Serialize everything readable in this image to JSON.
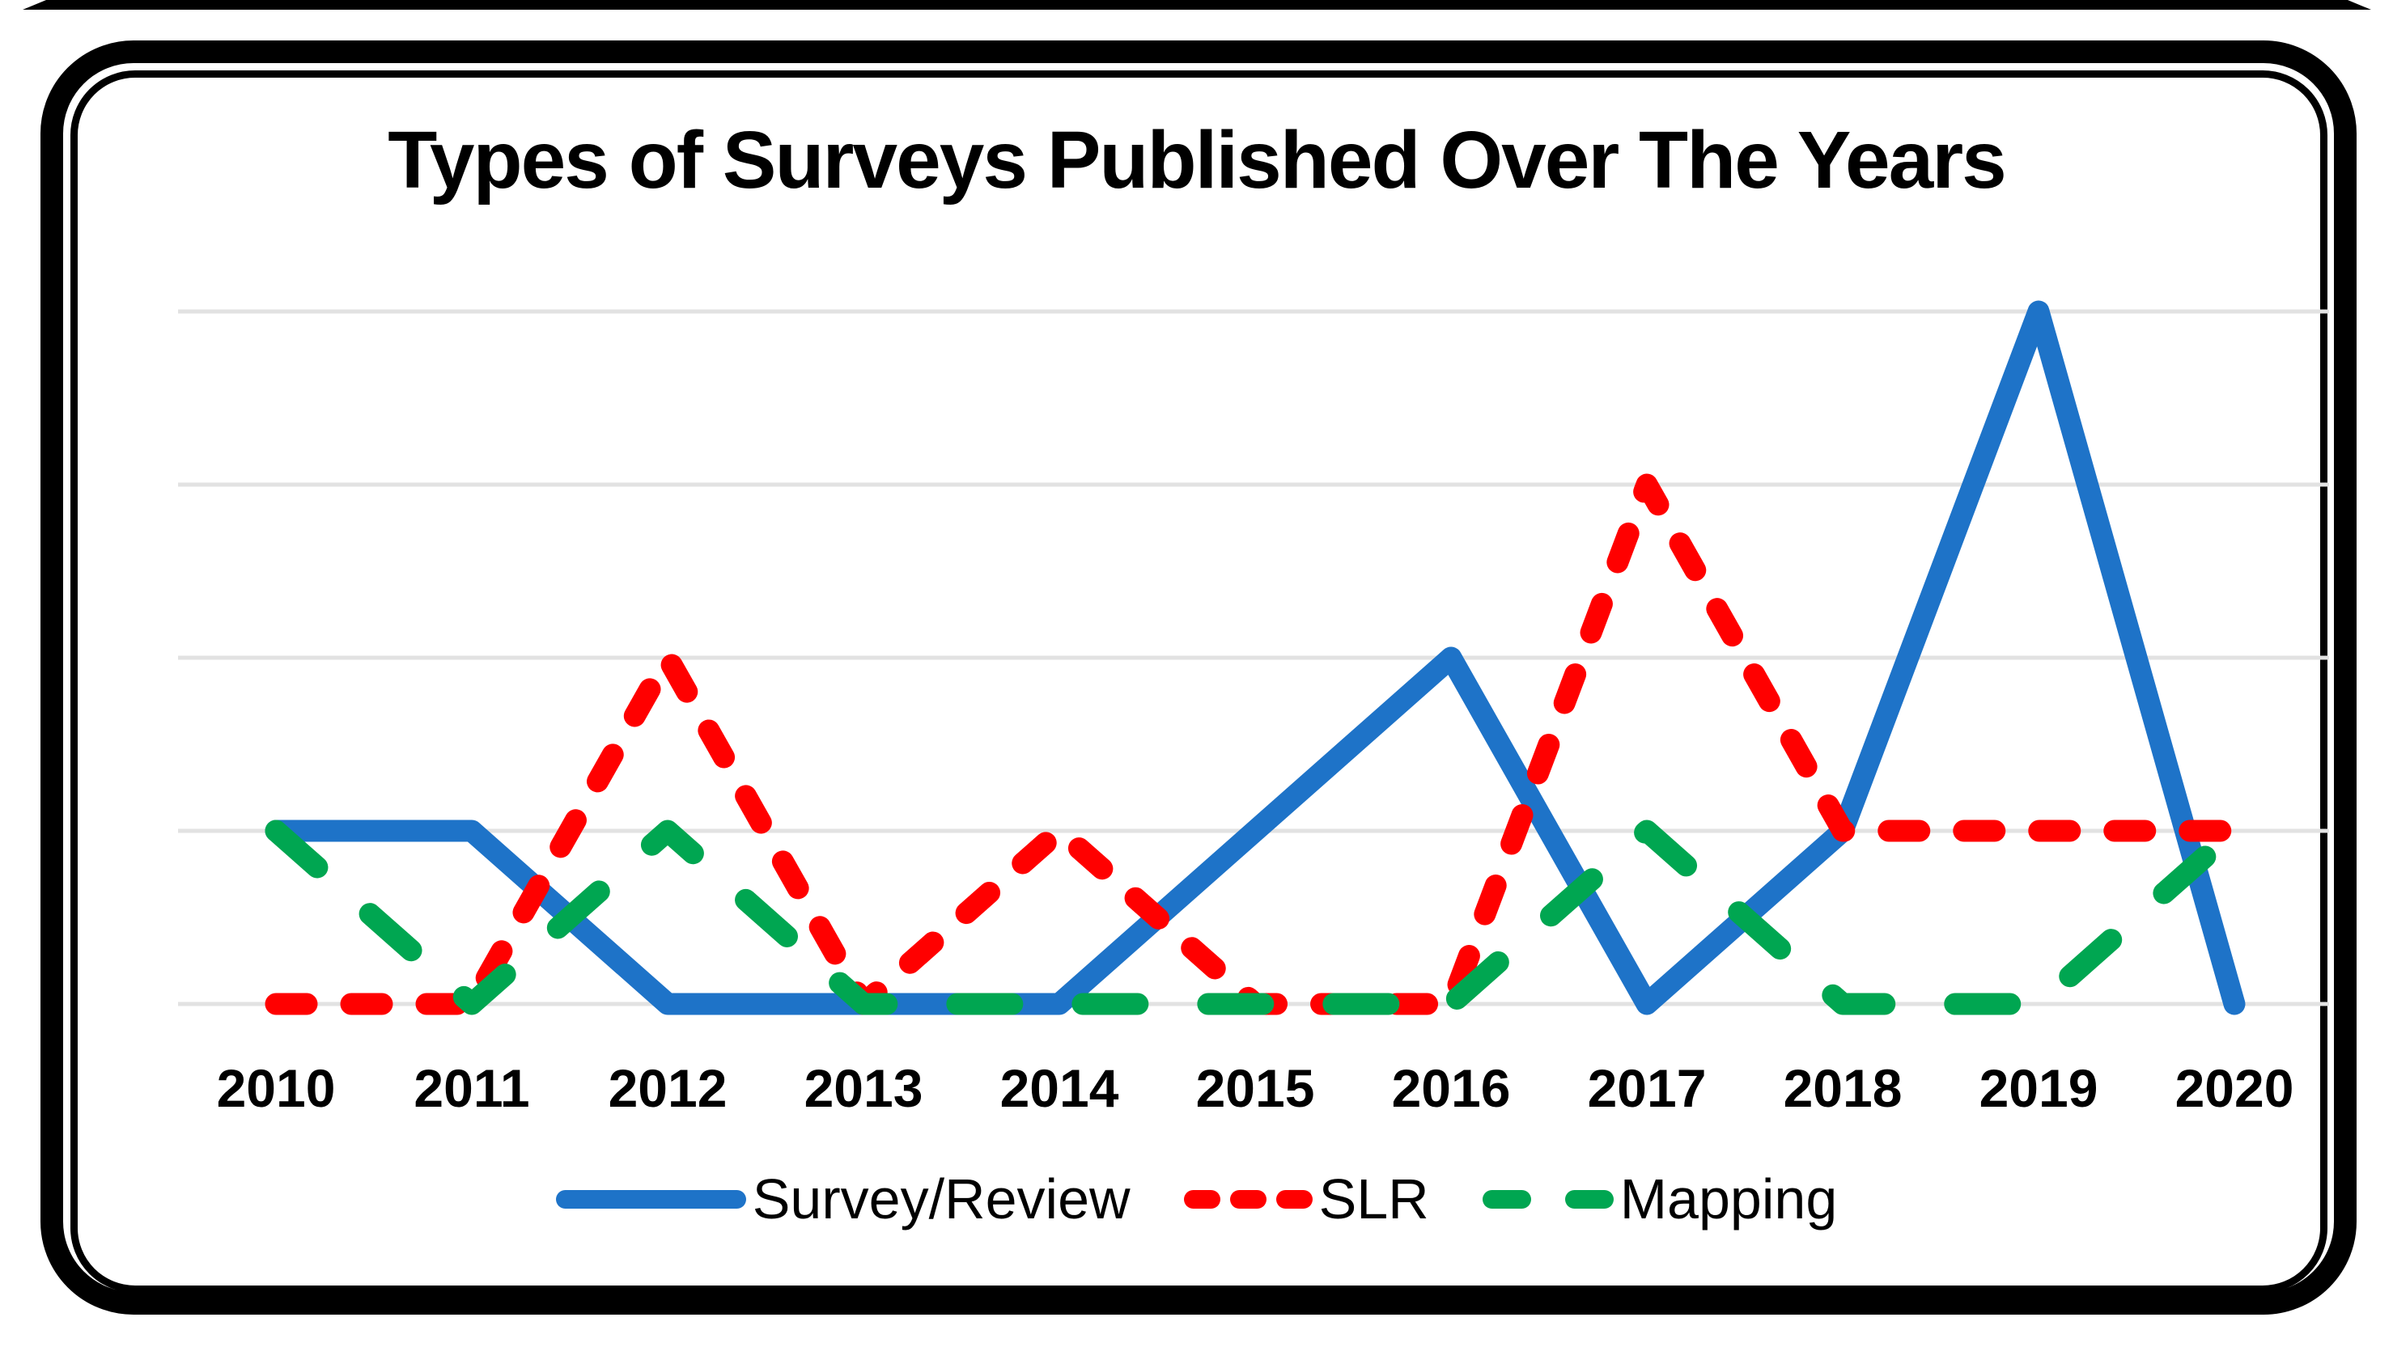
{
  "chart_data": {
    "type": "line",
    "title": "Types of Surveys Published Over The Years",
    "x": [
      "2010",
      "2011",
      "2012",
      "2013",
      "2014",
      "2015",
      "2016",
      "2017",
      "2018",
      "2019",
      "2020"
    ],
    "xlabel": "",
    "ylabel": "",
    "ylim": [
      0,
      4
    ],
    "y_gridline_step": 1,
    "y_axis_labels_visible": false,
    "grid": "horizontal",
    "legend_position": "bottom",
    "gridline_color": "#E2E2E2",
    "frame_color": "#000000",
    "series": [
      {
        "name": "Survey/Review",
        "color": "#1E73C8",
        "line_style": "solid",
        "values": [
          1,
          1,
          0,
          0,
          0,
          1,
          2,
          0,
          1,
          4,
          0
        ]
      },
      {
        "name": "SLR",
        "color": "#FF0000",
        "line_style": "dash",
        "values": [
          0,
          0,
          2,
          0,
          1,
          0,
          0,
          3,
          1,
          1,
          1
        ]
      },
      {
        "name": "Mapping",
        "color": "#00A651",
        "line_style": "long-dash",
        "values": [
          1,
          0,
          1,
          0,
          0,
          0,
          0,
          1,
          0,
          0,
          1
        ]
      }
    ]
  }
}
